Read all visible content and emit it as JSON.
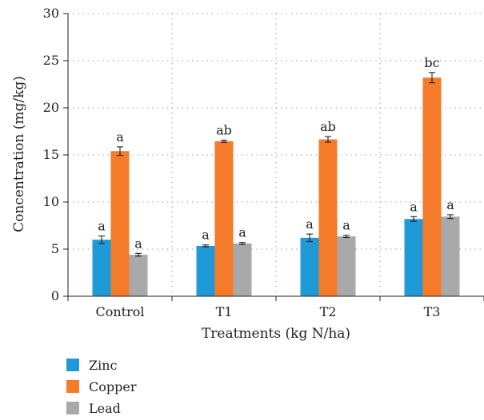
{
  "chart_data": {
    "type": "bar",
    "title": "",
    "xlabel": "Treatments (kg N/ha)",
    "ylabel": "Concentration (mg/kg)",
    "ylim": [
      0,
      30
    ],
    "yticks": [
      "0",
      "5",
      "10",
      "15",
      "20",
      "25",
      "30"
    ],
    "categories": [
      "Control",
      "T1",
      "T2",
      "T3"
    ],
    "grid": "dotted",
    "legend_position": "bottom-left",
    "series": [
      {
        "name": "Zinc",
        "color": "#1f9ad6",
        "values": [
          6.0,
          5.35,
          6.2,
          8.2
        ],
        "errors": [
          0.4,
          0.1,
          0.4,
          0.25
        ],
        "labels": [
          "a",
          "a",
          "a",
          "a"
        ]
      },
      {
        "name": "Copper",
        "color": "#f47b2a",
        "values": [
          15.4,
          16.45,
          16.65,
          23.2
        ],
        "errors": [
          0.45,
          0.12,
          0.3,
          0.55
        ],
        "labels": [
          "a",
          "ab",
          "ab",
          "bc"
        ]
      },
      {
        "name": "Lead",
        "color": "#a9a9a9",
        "values": [
          4.4,
          5.6,
          6.35,
          8.45
        ],
        "errors": [
          0.15,
          0.1,
          0.12,
          0.2
        ],
        "labels": [
          "a",
          "a",
          "a",
          "a"
        ]
      }
    ]
  }
}
